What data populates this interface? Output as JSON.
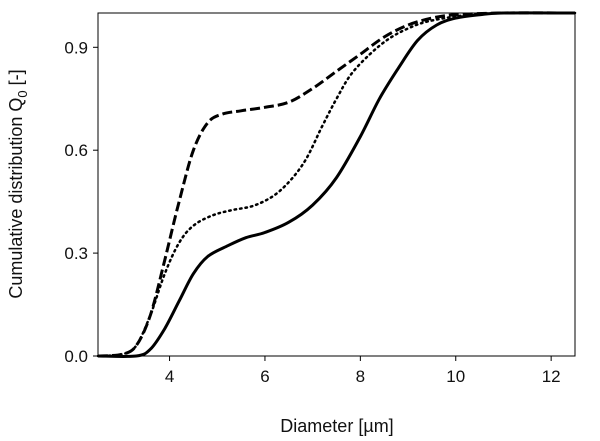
{
  "chart_data": {
    "type": "line",
    "title": "",
    "xlabel": "Diameter [µm]",
    "ylabel_main": "Cumulative distribution Q",
    "ylabel_sub": "0",
    "ylabel_suffix": " [-]",
    "xlim": [
      2.5,
      12.5
    ],
    "ylim": [
      0,
      1.0
    ],
    "xticks": [
      4,
      6,
      8,
      10,
      12
    ],
    "xtick_labels": [
      "4",
      "6",
      "8",
      "10",
      "12"
    ],
    "yticks": [
      0,
      0.3,
      0.6,
      0.9
    ],
    "ytick_labels": [
      "0.0",
      "0.3",
      "0.6",
      "0.9"
    ],
    "grid": false,
    "legend": "none",
    "series": [
      {
        "style": "dashed",
        "color": "#000000",
        "points": [
          [
            2.5,
            0
          ],
          [
            3.0,
            0.005
          ],
          [
            3.3,
            0.03
          ],
          [
            3.6,
            0.12
          ],
          [
            3.9,
            0.28
          ],
          [
            4.2,
            0.45
          ],
          [
            4.5,
            0.6
          ],
          [
            4.8,
            0.68
          ],
          [
            5.1,
            0.705
          ],
          [
            5.5,
            0.715
          ],
          [
            6.0,
            0.725
          ],
          [
            6.5,
            0.74
          ],
          [
            7.0,
            0.78
          ],
          [
            7.5,
            0.83
          ],
          [
            8.0,
            0.88
          ],
          [
            8.5,
            0.93
          ],
          [
            9.0,
            0.965
          ],
          [
            9.5,
            0.985
          ],
          [
            10.0,
            0.995
          ],
          [
            11.0,
            1.0
          ],
          [
            12.5,
            1.0
          ]
        ]
      },
      {
        "style": "dotted",
        "color": "#000000",
        "points": [
          [
            2.5,
            0
          ],
          [
            3.0,
            0.005
          ],
          [
            3.3,
            0.03
          ],
          [
            3.6,
            0.12
          ],
          [
            3.9,
            0.24
          ],
          [
            4.2,
            0.33
          ],
          [
            4.5,
            0.38
          ],
          [
            4.9,
            0.41
          ],
          [
            5.3,
            0.425
          ],
          [
            5.8,
            0.44
          ],
          [
            6.3,
            0.48
          ],
          [
            6.8,
            0.56
          ],
          [
            7.2,
            0.67
          ],
          [
            7.5,
            0.75
          ],
          [
            7.8,
            0.82
          ],
          [
            8.2,
            0.88
          ],
          [
            8.6,
            0.925
          ],
          [
            9.0,
            0.955
          ],
          [
            9.4,
            0.975
          ],
          [
            10.0,
            0.99
          ],
          [
            10.5,
            0.997
          ],
          [
            11.0,
            1.0
          ],
          [
            12.5,
            1.0
          ]
        ]
      },
      {
        "style": "solid",
        "color": "#000000",
        "points": [
          [
            2.5,
            0
          ],
          [
            3.3,
            0.0
          ],
          [
            3.6,
            0.02
          ],
          [
            3.9,
            0.08
          ],
          [
            4.2,
            0.16
          ],
          [
            4.5,
            0.24
          ],
          [
            4.8,
            0.29
          ],
          [
            5.2,
            0.32
          ],
          [
            5.6,
            0.345
          ],
          [
            6.0,
            0.36
          ],
          [
            6.5,
            0.39
          ],
          [
            7.0,
            0.44
          ],
          [
            7.5,
            0.52
          ],
          [
            8.0,
            0.64
          ],
          [
            8.4,
            0.75
          ],
          [
            8.8,
            0.84
          ],
          [
            9.2,
            0.92
          ],
          [
            9.6,
            0.965
          ],
          [
            10.0,
            0.985
          ],
          [
            10.5,
            0.995
          ],
          [
            11.0,
            1.0
          ],
          [
            12.5,
            1.0
          ]
        ]
      }
    ]
  }
}
